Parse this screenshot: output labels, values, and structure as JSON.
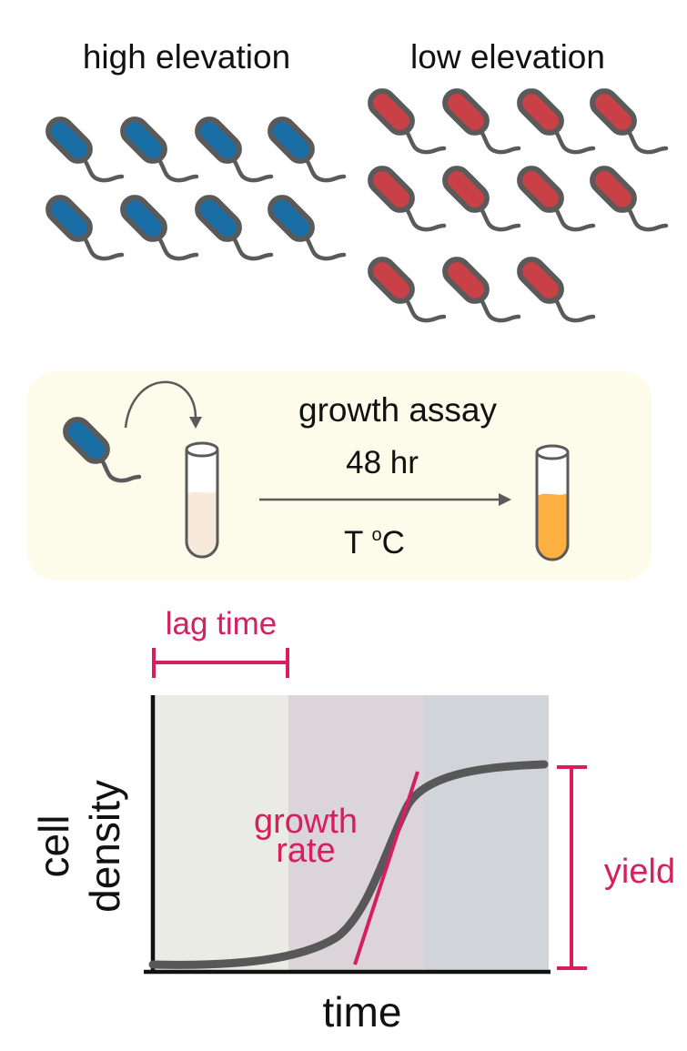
{
  "groups": {
    "high": {
      "label": "high elevation",
      "color": "#1a6ea6",
      "count": 8
    },
    "low": {
      "label": "low elevation",
      "color": "#c94046",
      "count": 11
    }
  },
  "assay": {
    "title": "growth assay",
    "duration": "48 hr",
    "temp_main": "T ",
    "temp_sup": "o",
    "temp_unit": "C",
    "panel_color": "#fdfbea",
    "initial_fill_color": "#f8eadb",
    "final_fill_color": "#fbb041",
    "cell_color": "#1a6ea6"
  },
  "plot": {
    "ylabel_line1": "cell",
    "ylabel_line2": "density",
    "xlabel": "time",
    "lag_label": "lag time",
    "rate_label_line1": "growth",
    "rate_label_line2": "rate",
    "yield_label": "yield",
    "annotation_color": "#d61f5e",
    "curve_color": "#585858",
    "phase_colors": [
      "#ebebe6",
      "#dbd4d8",
      "#d1d4d8"
    ]
  }
}
